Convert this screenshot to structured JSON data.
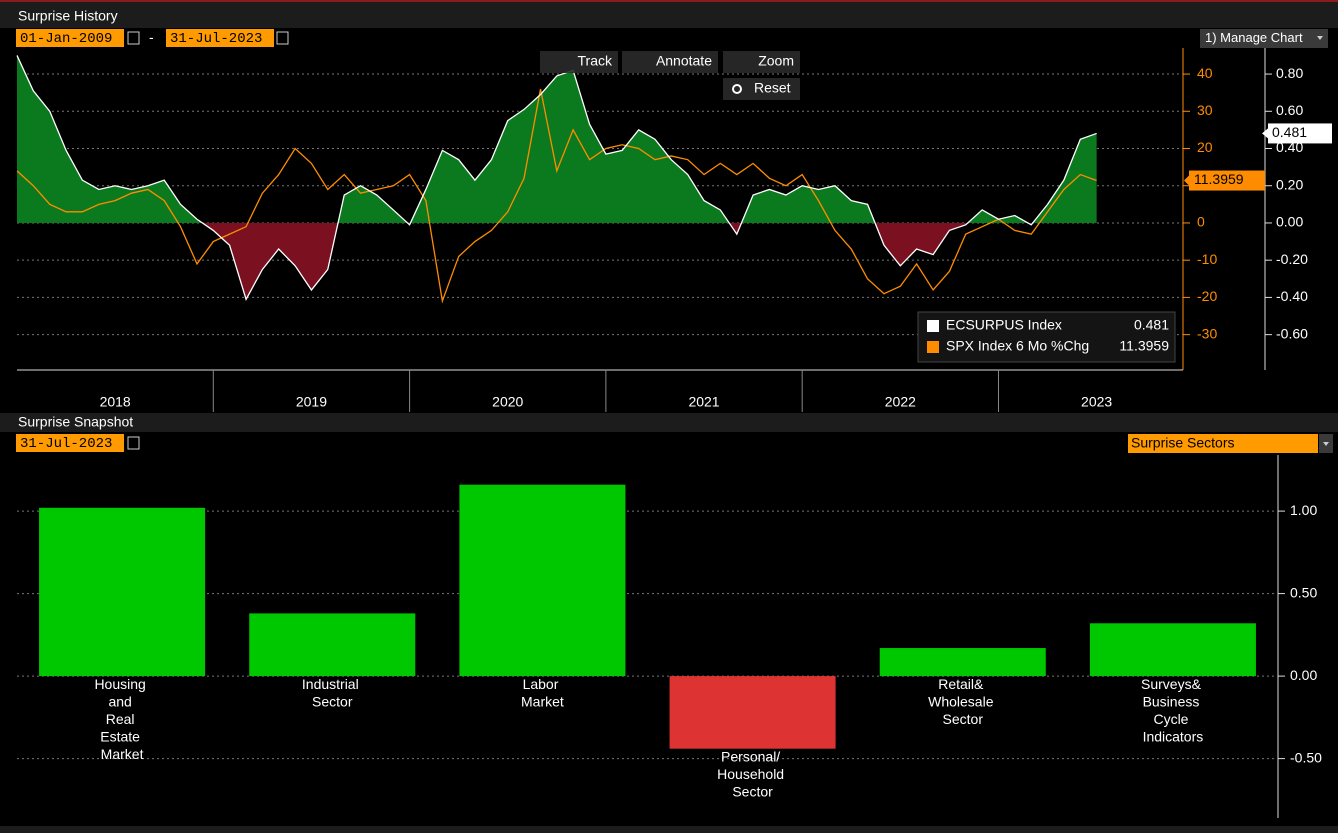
{
  "ui": {
    "start_date": "01-Jan-2009",
    "date_separator": "-",
    "end_date": "31-Jul-2023",
    "manage_chart": "1) Manage Chart",
    "tools": [
      "Track",
      "Annotate",
      "Zoom"
    ],
    "reset": "Reset",
    "snapshot_date": "31-Jul-2023",
    "sector_dropdown": "Surprise Sectors"
  },
  "chart_data": [
    {
      "type": "line",
      "title": "Surprise History",
      "x": [
        2018,
        2018.083,
        2018.167,
        2018.25,
        2018.333,
        2018.417,
        2018.5,
        2018.583,
        2018.667,
        2018.75,
        2018.833,
        2018.917,
        2019,
        2019.083,
        2019.167,
        2019.25,
        2019.333,
        2019.417,
        2019.5,
        2019.583,
        2019.667,
        2019.75,
        2019.833,
        2019.917,
        2020,
        2020.083,
        2020.167,
        2020.25,
        2020.333,
        2020.417,
        2020.5,
        2020.583,
        2020.667,
        2020.75,
        2020.833,
        2020.917,
        2021,
        2021.083,
        2021.167,
        2021.25,
        2021.333,
        2021.417,
        2021.5,
        2021.583,
        2021.667,
        2021.75,
        2021.833,
        2021.917,
        2022,
        2022.083,
        2022.167,
        2022.25,
        2022.333,
        2022.417,
        2022.5,
        2022.583,
        2022.667,
        2022.75,
        2022.833,
        2022.917,
        2023,
        2023.083,
        2023.167,
        2023.25,
        2023.333,
        2023.417,
        2023.5
      ],
      "series": [
        {
          "name": "ECSURPUS Index",
          "color": "#ffffff",
          "axis": "y2",
          "area_positive_color": "#0b7a1f",
          "area_negative_color": "#7a1020",
          "values": [
            0.9,
            0.71,
            0.6,
            0.39,
            0.23,
            0.18,
            0.2,
            0.18,
            0.2,
            0.23,
            0.1,
            0.02,
            -0.04,
            -0.12,
            -0.41,
            -0.25,
            -0.14,
            -0.23,
            -0.36,
            -0.25,
            0.15,
            0.2,
            0.15,
            0.07,
            -0.01,
            0.18,
            0.39,
            0.34,
            0.23,
            0.34,
            0.55,
            0.61,
            0.69,
            0.79,
            0.82,
            0.53,
            0.37,
            0.39,
            0.5,
            0.45,
            0.34,
            0.26,
            0.12,
            0.07,
            -0.06,
            0.15,
            0.18,
            0.15,
            0.2,
            0.18,
            0.2,
            0.12,
            0.1,
            -0.12,
            -0.23,
            -0.14,
            -0.17,
            -0.04,
            -0.01,
            0.07,
            0.02,
            0.04,
            -0.01,
            0.1,
            0.23,
            0.45,
            0.481
          ]
        },
        {
          "name": "SPX Index 6 Mo %Chg",
          "color": "#ff8c00",
          "axis": "y",
          "values": [
            14,
            10,
            5,
            3,
            3,
            5,
            6,
            8,
            9,
            6,
            -1,
            -11,
            -5,
            -3,
            -1,
            8,
            13,
            20,
            16,
            9,
            13,
            8,
            9,
            10,
            13,
            6,
            -21,
            -9,
            -5,
            -2,
            3,
            12,
            36,
            14,
            25,
            17,
            20,
            21,
            20,
            17,
            18,
            17,
            13,
            16,
            13,
            16,
            12,
            10,
            13,
            6,
            -2,
            -7,
            -15,
            -19,
            -17,
            -11,
            -18,
            -13,
            -3,
            -1,
            1,
            -2,
            -3,
            3,
            9,
            13,
            11.3959
          ]
        }
      ],
      "xlim": [
        2018,
        2023.94
      ],
      "xticks": [
        {
          "value": 2018.5,
          "label": "2018"
        },
        {
          "value": 2019.5,
          "label": "2019"
        },
        {
          "value": 2020.5,
          "label": "2020"
        },
        {
          "value": 2021.5,
          "label": "2021"
        },
        {
          "value": 2022.5,
          "label": "2022"
        },
        {
          "value": 2023.5,
          "label": "2023"
        }
      ],
      "ylim": [
        -39.5,
        47
      ],
      "yticks": [
        -30,
        -20,
        -10,
        0,
        10,
        20,
        30,
        40
      ],
      "y2lim": [
        -0.79,
        0.94
      ],
      "y2ticks": [
        {
          "value": -0.6,
          "label": "-0.60"
        },
        {
          "value": -0.4,
          "label": "-0.40"
        },
        {
          "value": -0.2,
          "label": "-0.20"
        },
        {
          "value": 0,
          "label": "0.00"
        },
        {
          "value": 0.2,
          "label": "0.20"
        },
        {
          "value": 0.4,
          "label": "0.40"
        },
        {
          "value": 0.6,
          "label": "0.60"
        },
        {
          "value": 0.8,
          "label": "0.80"
        }
      ],
      "grid": true,
      "legend": "lower right"
    },
    {
      "type": "bar",
      "title": "Surprise Snapshot",
      "categories": [
        "Housing and Real Estate Market",
        "Industrial Sector",
        "Labor Market",
        "Personal/ Household Sector",
        "Retail& Wholesale Sector",
        "Surveys& Business Cycle Indicators"
      ],
      "values": [
        1.02,
        0.38,
        1.16,
        -0.44,
        0.17,
        0.32
      ],
      "color": "#00c800",
      "negative_color": "#dd3333",
      "ylim": [
        -0.86,
        1.34
      ],
      "yticks": [
        {
          "value": -0.5,
          "label": "-0.50"
        },
        {
          "value": 0,
          "label": "0.00"
        },
        {
          "value": 0.5,
          "label": "0.50"
        },
        {
          "value": 1,
          "label": "1.00"
        }
      ],
      "grid": true
    }
  ]
}
